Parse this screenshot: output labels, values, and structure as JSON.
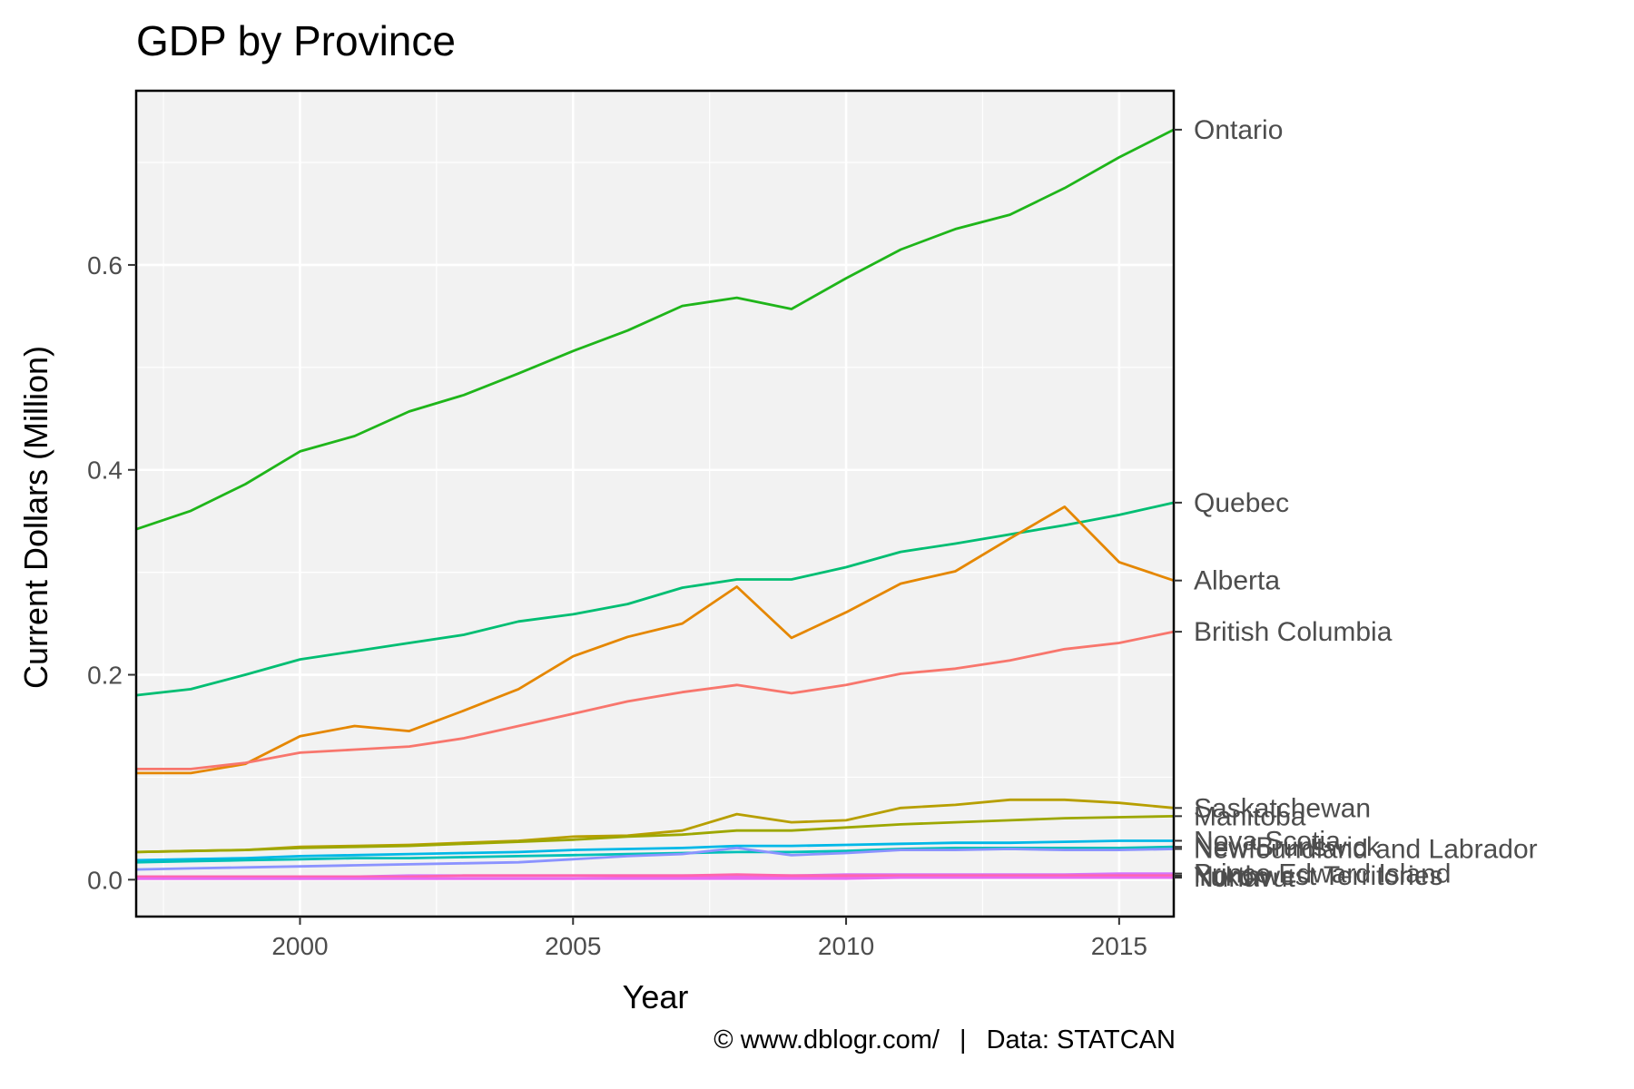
{
  "chart_data": {
    "type": "line",
    "title": "GDP by Province",
    "xlabel": "Year",
    "ylabel": "Current Dollars (Million)",
    "caption": {
      "source_site": "© www.dblogr.com/",
      "separator": "|",
      "data_source": "Data: STATCAN"
    },
    "xlim": [
      1997,
      2016
    ],
    "ylim": [
      -0.036,
      0.77
    ],
    "x_ticks": [
      2000,
      2005,
      2010,
      2015
    ],
    "x_tick_labels": [
      "2000",
      "2005",
      "2010",
      "2015"
    ],
    "y_ticks": [
      0.0,
      0.2,
      0.4,
      0.6
    ],
    "y_tick_labels": [
      "0.0",
      "0.2",
      "0.4",
      "0.6"
    ],
    "grid": true,
    "legend": "direct labels on right axis",
    "x": [
      1997,
      1998,
      1999,
      2000,
      2001,
      2002,
      2003,
      2004,
      2005,
      2006,
      2007,
      2008,
      2009,
      2010,
      2011,
      2012,
      2013,
      2014,
      2015,
      2016
    ],
    "series": [
      {
        "name": "Ontario",
        "color": "#1fb51a",
        "values": [
          0.342,
          0.36,
          0.386,
          0.418,
          0.433,
          0.457,
          0.473,
          0.494,
          0.516,
          0.536,
          0.56,
          0.568,
          0.557,
          0.587,
          0.615,
          0.635,
          0.649,
          0.675,
          0.705,
          0.732
        ]
      },
      {
        "name": "Quebec",
        "color": "#00be73",
        "values": [
          0.18,
          0.186,
          0.2,
          0.215,
          0.223,
          0.231,
          0.239,
          0.252,
          0.259,
          0.269,
          0.285,
          0.293,
          0.293,
          0.305,
          0.32,
          0.328,
          0.337,
          0.346,
          0.356,
          0.368
        ]
      },
      {
        "name": "Alberta",
        "color": "#e58700",
        "values": [
          0.104,
          0.104,
          0.113,
          0.14,
          0.15,
          0.145,
          0.165,
          0.186,
          0.218,
          0.237,
          0.25,
          0.286,
          0.236,
          0.261,
          0.289,
          0.301,
          0.333,
          0.364,
          0.31,
          0.292
        ]
      },
      {
        "name": "British Columbia",
        "color": "#f8766d",
        "values": [
          0.108,
          0.108,
          0.114,
          0.124,
          0.127,
          0.13,
          0.138,
          0.15,
          0.162,
          0.174,
          0.183,
          0.19,
          0.182,
          0.19,
          0.201,
          0.206,
          0.214,
          0.225,
          0.231,
          0.242
        ]
      },
      {
        "name": "Saskatchewan",
        "color": "#b79f00",
        "values": [
          0.027,
          0.028,
          0.029,
          0.032,
          0.033,
          0.034,
          0.036,
          0.038,
          0.042,
          0.043,
          0.048,
          0.064,
          0.056,
          0.058,
          0.07,
          0.073,
          0.078,
          0.078,
          0.075,
          0.07
        ]
      },
      {
        "name": "Manitoba",
        "color": "#9da700",
        "values": [
          0.027,
          0.028,
          0.029,
          0.031,
          0.032,
          0.033,
          0.035,
          0.037,
          0.039,
          0.042,
          0.044,
          0.048,
          0.048,
          0.051,
          0.054,
          0.056,
          0.058,
          0.06,
          0.061,
          0.062
        ]
      },
      {
        "name": "Nova Scotia",
        "color": "#00b8e7",
        "values": [
          0.019,
          0.02,
          0.021,
          0.023,
          0.024,
          0.025,
          0.026,
          0.027,
          0.029,
          0.03,
          0.031,
          0.033,
          0.033,
          0.034,
          0.035,
          0.036,
          0.036,
          0.037,
          0.038,
          0.038
        ]
      },
      {
        "name": "New Brunswick",
        "color": "#00c0b8",
        "values": [
          0.017,
          0.018,
          0.019,
          0.02,
          0.021,
          0.021,
          0.022,
          0.023,
          0.024,
          0.025,
          0.026,
          0.027,
          0.027,
          0.028,
          0.03,
          0.031,
          0.031,
          0.031,
          0.031,
          0.032
        ]
      },
      {
        "name": "Newfoundland and Labrador",
        "color": "#8b93ff",
        "values": [
          0.01,
          0.011,
          0.012,
          0.013,
          0.014,
          0.015,
          0.016,
          0.017,
          0.02,
          0.023,
          0.025,
          0.031,
          0.024,
          0.026,
          0.029,
          0.029,
          0.03,
          0.029,
          0.029,
          0.03
        ]
      },
      {
        "name": "Prince Edward Island",
        "color": "#d575fe",
        "values": [
          0.003,
          0.003,
          0.003,
          0.003,
          0.003,
          0.004,
          0.004,
          0.004,
          0.004,
          0.004,
          0.004,
          0.004,
          0.004,
          0.005,
          0.005,
          0.005,
          0.005,
          0.005,
          0.006,
          0.006
        ]
      },
      {
        "name": "Yukon",
        "color": "#f962dd",
        "values": [
          0.001,
          0.001,
          0.001,
          0.001,
          0.001,
          0.001,
          0.001,
          0.001,
          0.001,
          0.002,
          0.002,
          0.002,
          0.002,
          0.002,
          0.002,
          0.002,
          0.002,
          0.002,
          0.002,
          0.003
        ]
      },
      {
        "name": "Northwest Territories",
        "color": "#ff65ac",
        "values": [
          0.003,
          0.003,
          0.003,
          0.003,
          0.003,
          0.003,
          0.004,
          0.004,
          0.004,
          0.004,
          0.004,
          0.005,
          0.004,
          0.004,
          0.004,
          0.004,
          0.004,
          0.004,
          0.004,
          0.004
        ]
      },
      {
        "name": "Nunavut",
        "color": "#e76bf3",
        "values": [
          0.001,
          0.001,
          0.001,
          0.001,
          0.001,
          0.001,
          0.001,
          0.001,
          0.001,
          0.001,
          0.001,
          0.001,
          0.001,
          0.001,
          0.002,
          0.002,
          0.002,
          0.002,
          0.002,
          0.002
        ]
      }
    ]
  }
}
